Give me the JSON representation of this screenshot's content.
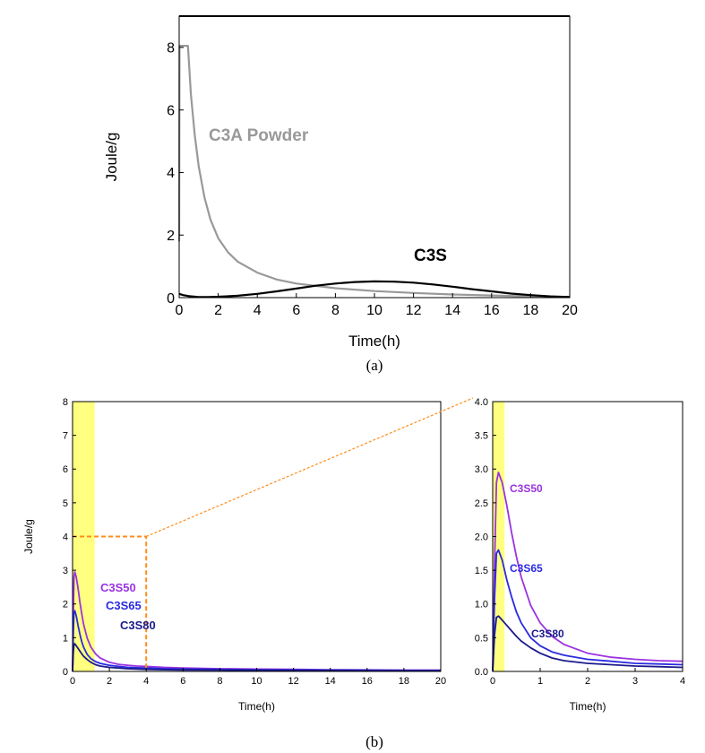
{
  "chart_data": [
    {
      "type": "line",
      "caption": "(a)",
      "xlabel": "Time(h)",
      "ylabel": "Joule/g",
      "xlim": [
        0,
        20
      ],
      "ylim": [
        0,
        9
      ],
      "xticks": [
        0,
        2,
        4,
        6,
        8,
        10,
        12,
        14,
        16,
        18,
        20
      ],
      "yticks": [
        0,
        2,
        4,
        6,
        8
      ],
      "series": [
        {
          "name": "C3A Powder",
          "color": "#999999",
          "x": [
            0,
            0.02,
            0.1,
            0.45,
            0.6,
            0.8,
            1.0,
            1.3,
            1.6,
            2.0,
            2.5,
            3.0,
            4.0,
            5.0,
            6.0,
            8.0,
            10.0,
            12.0,
            14.0,
            16.0,
            18.0,
            20.0
          ],
          "y": [
            1.8,
            8.05,
            8.05,
            8.05,
            6.5,
            5.2,
            4.2,
            3.2,
            2.5,
            1.9,
            1.45,
            1.15,
            0.8,
            0.58,
            0.45,
            0.3,
            0.21,
            0.15,
            0.1,
            0.07,
            0.04,
            0.02
          ]
        },
        {
          "name": "C3S",
          "color": "#000000",
          "x": [
            0,
            0.2,
            0.5,
            1.0,
            1.5,
            2.0,
            3.0,
            4.0,
            5.0,
            6.0,
            7.0,
            8.0,
            9.0,
            10.0,
            11.0,
            12.0,
            13.0,
            14.0,
            15.0,
            16.0,
            17.0,
            18.0,
            19.0,
            20.0
          ],
          "y": [
            0.12,
            0.08,
            0.05,
            0.02,
            0.02,
            0.03,
            0.06,
            0.12,
            0.2,
            0.29,
            0.38,
            0.45,
            0.5,
            0.52,
            0.51,
            0.48,
            0.42,
            0.35,
            0.27,
            0.2,
            0.13,
            0.08,
            0.04,
            0.02
          ]
        }
      ]
    },
    {
      "type": "line",
      "xlabel": "Time(h)",
      "ylabel": "Joule/g",
      "xlim": [
        0,
        20
      ],
      "ylim": [
        0,
        8
      ],
      "xticks": [
        0,
        2,
        4,
        6,
        8,
        10,
        12,
        14,
        16,
        18,
        20
      ],
      "yticks": [
        0,
        1,
        2,
        3,
        4,
        5,
        6,
        7,
        8
      ],
      "highlight_x": [
        0,
        1.2
      ],
      "highlight_color": "#ffff80",
      "zoom_box": {
        "x": [
          0,
          4
        ],
        "y": [
          0,
          4
        ],
        "color": "#ff8c1a"
      },
      "series": [
        {
          "name": "C3S50",
          "color": "#9a33e0",
          "x": [
            0,
            0.04,
            0.08,
            0.12,
            0.2,
            0.3,
            0.4,
            0.5,
            0.6,
            0.8,
            1.0,
            1.25,
            1.5,
            2.0,
            2.5,
            3.0,
            3.5,
            4.0,
            5.0,
            6.0,
            8.0,
            10.0,
            12.0,
            14.0,
            16.0,
            18.0,
            20.0
          ],
          "y": [
            0,
            1.6,
            2.8,
            2.95,
            2.8,
            2.45,
            2.05,
            1.7,
            1.4,
            0.98,
            0.72,
            0.52,
            0.4,
            0.27,
            0.21,
            0.18,
            0.16,
            0.15,
            0.12,
            0.1,
            0.08,
            0.07,
            0.06,
            0.05,
            0.045,
            0.04,
            0.04
          ]
        },
        {
          "name": "C3S65",
          "color": "#2a2ae0",
          "x": [
            0,
            0.04,
            0.08,
            0.12,
            0.2,
            0.3,
            0.4,
            0.5,
            0.6,
            0.8,
            1.0,
            1.25,
            1.5,
            2.0,
            2.5,
            3.0,
            3.5,
            4.0,
            5.0,
            6.0,
            8.0,
            10.0,
            12.0,
            14.0,
            16.0,
            18.0,
            20.0
          ],
          "y": [
            0,
            1.1,
            1.75,
            1.8,
            1.65,
            1.35,
            1.1,
            0.88,
            0.72,
            0.5,
            0.38,
            0.29,
            0.24,
            0.18,
            0.15,
            0.12,
            0.11,
            0.1,
            0.08,
            0.07,
            0.06,
            0.05,
            0.045,
            0.04,
            0.035,
            0.03,
            0.03
          ]
        },
        {
          "name": "C3S80",
          "color": "#1a1a8c",
          "x": [
            0,
            0.04,
            0.08,
            0.12,
            0.2,
            0.3,
            0.4,
            0.5,
            0.6,
            0.8,
            1.0,
            1.25,
            1.5,
            2.0,
            2.5,
            3.0,
            3.5,
            4.0,
            5.0,
            6.0,
            8.0,
            10.0,
            12.0,
            14.0,
            16.0,
            18.0,
            20.0
          ],
          "y": [
            0,
            0.55,
            0.8,
            0.82,
            0.76,
            0.68,
            0.6,
            0.52,
            0.45,
            0.35,
            0.27,
            0.2,
            0.16,
            0.12,
            0.1,
            0.08,
            0.07,
            0.06,
            0.05,
            0.045,
            0.04,
            0.035,
            0.03,
            0.03,
            0.025,
            0.02,
            0.02
          ]
        }
      ]
    },
    {
      "type": "line",
      "caption": "(b)",
      "xlabel": "Time(h)",
      "ylabel": "",
      "xlim": [
        0,
        4
      ],
      "ylim": [
        0,
        4
      ],
      "xticks": [
        0,
        1,
        2,
        3,
        4
      ],
      "yticks": [
        "0.0",
        "0.5",
        "1.0",
        "1.5",
        "2.0",
        "2.5",
        "3.0",
        "3.5",
        "4.0"
      ],
      "highlight_x": [
        0,
        0.25
      ],
      "highlight_color": "#ffff80",
      "series": [
        {
          "name": "C3S50",
          "color": "#9a33e0",
          "x": [
            0,
            0.04,
            0.08,
            0.12,
            0.2,
            0.3,
            0.4,
            0.5,
            0.6,
            0.8,
            1.0,
            1.25,
            1.5,
            2.0,
            2.5,
            3.0,
            3.5,
            4.0
          ],
          "y": [
            0,
            1.6,
            2.8,
            2.95,
            2.8,
            2.45,
            2.05,
            1.7,
            1.4,
            0.98,
            0.72,
            0.52,
            0.4,
            0.27,
            0.21,
            0.18,
            0.16,
            0.15
          ]
        },
        {
          "name": "C3S65",
          "color": "#2a2ae0",
          "x": [
            0,
            0.04,
            0.08,
            0.12,
            0.2,
            0.3,
            0.4,
            0.5,
            0.6,
            0.8,
            1.0,
            1.25,
            1.5,
            2.0,
            2.5,
            3.0,
            3.5,
            4.0
          ],
          "y": [
            0,
            1.1,
            1.75,
            1.8,
            1.65,
            1.35,
            1.1,
            0.88,
            0.72,
            0.5,
            0.38,
            0.29,
            0.24,
            0.18,
            0.15,
            0.12,
            0.11,
            0.1
          ]
        },
        {
          "name": "C3S80",
          "color": "#1a1a8c",
          "x": [
            0,
            0.04,
            0.08,
            0.12,
            0.2,
            0.3,
            0.4,
            0.5,
            0.6,
            0.8,
            1.0,
            1.25,
            1.5,
            2.0,
            2.5,
            3.0,
            3.5,
            4.0
          ],
          "y": [
            0,
            0.55,
            0.8,
            0.82,
            0.76,
            0.68,
            0.6,
            0.52,
            0.45,
            0.35,
            0.27,
            0.2,
            0.16,
            0.12,
            0.1,
            0.08,
            0.07,
            0.06
          ]
        }
      ]
    }
  ]
}
